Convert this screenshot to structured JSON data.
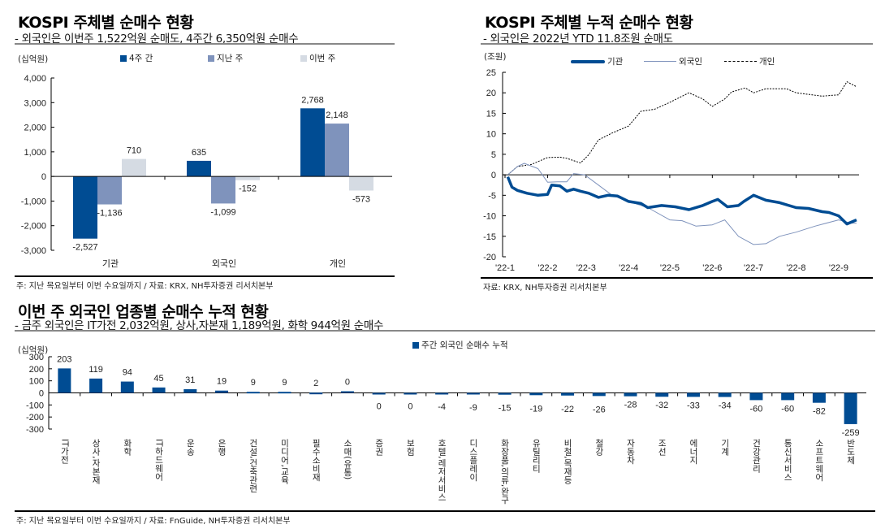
{
  "chart_data": [
    {
      "type": "bar",
      "title": "KOSPI 주체별 순매수 현황",
      "subtitle": "- 외국인은 이번주 1,522억원 순매도, 4주간 6,350억원 순매수",
      "ylabel": "(십억원)",
      "ylim": [
        -3000,
        4000
      ],
      "yticks": [
        "4,000",
        "3,000",
        "2,000",
        "1,000",
        "0",
        "-1,000",
        "-2,000",
        "-3,000"
      ],
      "ytick_values": [
        4000,
        3000,
        2000,
        1000,
        0,
        -1000,
        -2000,
        -3000
      ],
      "categories": [
        "기관",
        "외국인",
        "개인"
      ],
      "series": [
        {
          "name": "4주 간",
          "color": "#004C93",
          "values": [
            -2527,
            635,
            2768
          ],
          "labels": [
            "-2,527",
            "635",
            "2,768"
          ]
        },
        {
          "name": "지난 주",
          "color": "#7F93BC",
          "values": [
            -1136,
            -1099,
            2148
          ],
          "labels": [
            "-1,136",
            "-1,099",
            "2,148"
          ]
        },
        {
          "name": "이번 주",
          "color": "#D5DBE3",
          "values": [
            710,
            -152,
            -573
          ],
          "labels": [
            "710",
            "-152",
            "-573"
          ]
        }
      ],
      "legend": "top",
      "grid": false,
      "source": "주: 지난 목요일부터 이번 수요일까지 / 자료: KRX, NH투자증권 리서치본부"
    },
    {
      "type": "line",
      "title": "KOSPI 주체별 누적 순매수 현황",
      "subtitle": "- 외국인은 2022년 YTD 11.8조원 순매도",
      "ylabel": "(조원)",
      "ylim": [
        -20,
        25
      ],
      "yticks": [
        "25",
        "20",
        "15",
        "10",
        "5",
        "0",
        "-5",
        "-10",
        "-15",
        "-20"
      ],
      "ytick_values": [
        25,
        20,
        15,
        10,
        5,
        0,
        -5,
        -10,
        -15,
        -20
      ],
      "xticks": [
        "'22-1",
        "'22-2",
        "'22-3",
        "'22-4",
        "'22-5",
        "'22-6",
        "'22-7",
        "'22-8",
        "'22-9"
      ],
      "xtick_dates": [
        "2022-01-01",
        "2022-02-01",
        "2022-03-01",
        "2022-04-01",
        "2022-05-01",
        "2022-06-01",
        "2022-07-01",
        "2022-08-01",
        "2022-09-01"
      ],
      "legend": "top",
      "grid": false,
      "series": [
        {
          "name": "기관",
          "color": "#004C93",
          "style": "thick",
          "x": [
            "2022-01-03",
            "2022-01-06",
            "2022-01-10",
            "2022-01-17",
            "2022-01-25",
            "2022-02-01",
            "2022-02-04",
            "2022-02-10",
            "2022-02-15",
            "2022-02-20",
            "2022-02-25",
            "2022-03-03",
            "2022-03-10",
            "2022-03-17",
            "2022-03-24",
            "2022-04-01",
            "2022-04-10",
            "2022-04-15",
            "2022-04-25",
            "2022-05-05",
            "2022-05-15",
            "2022-05-25",
            "2022-06-01",
            "2022-06-05",
            "2022-06-12",
            "2022-06-20",
            "2022-06-24",
            "2022-07-01",
            "2022-07-10",
            "2022-07-20",
            "2022-08-01",
            "2022-08-10",
            "2022-08-20",
            "2022-08-25",
            "2022-09-01",
            "2022-09-07",
            "2022-09-14"
          ],
          "y": [
            -0.5,
            -3,
            -3.8,
            -4.5,
            -5,
            -4.8,
            -2.5,
            -2.7,
            -4,
            -3.5,
            -4,
            -4.5,
            -5.5,
            -5,
            -5.2,
            -6.5,
            -7,
            -8,
            -7.5,
            -7.8,
            -8.5,
            -7.5,
            -6.5,
            -6,
            -7.8,
            -7.5,
            -6.5,
            -5,
            -6.2,
            -6.8,
            -8,
            -8.2,
            -9,
            -9.2,
            -10,
            -12,
            -11
          ]
        },
        {
          "name": "외국인",
          "color": "#7F93BC",
          "style": "thin",
          "x": [
            "2022-01-03",
            "2022-01-10",
            "2022-01-15",
            "2022-01-25",
            "2022-02-01",
            "2022-02-08",
            "2022-02-15",
            "2022-02-20",
            "2022-02-28",
            "2022-03-10",
            "2022-03-20",
            "2022-04-01",
            "2022-04-15",
            "2022-05-01",
            "2022-05-10",
            "2022-05-20",
            "2022-06-01",
            "2022-06-10",
            "2022-06-20",
            "2022-07-01",
            "2022-07-10",
            "2022-07-20",
            "2022-08-01",
            "2022-08-15",
            "2022-09-01",
            "2022-09-10",
            "2022-09-14"
          ],
          "y": [
            0,
            2,
            2.8,
            1.5,
            -1.8,
            -1.7,
            -1.7,
            0.3,
            0,
            -2.5,
            -5,
            -6.5,
            -8,
            -11,
            -11.2,
            -12.5,
            -12.2,
            -11,
            -15,
            -17,
            -16.8,
            -15,
            -14,
            -12.5,
            -11,
            -11.8,
            -11.8
          ]
        },
        {
          "name": "개인",
          "color": "#000000",
          "style": "dashed",
          "x": [
            "2022-01-03",
            "2022-01-10",
            "2022-01-20",
            "2022-02-01",
            "2022-02-10",
            "2022-02-15",
            "2022-02-25",
            "2022-03-03",
            "2022-03-10",
            "2022-03-20",
            "2022-04-01",
            "2022-04-10",
            "2022-04-20",
            "2022-04-30",
            "2022-05-15",
            "2022-05-25",
            "2022-06-01",
            "2022-06-10",
            "2022-06-15",
            "2022-06-25",
            "2022-07-01",
            "2022-07-10",
            "2022-07-25",
            "2022-08-01",
            "2022-08-20",
            "2022-09-01",
            "2022-09-07",
            "2022-09-14"
          ],
          "y": [
            0,
            2,
            2.5,
            4.2,
            4.3,
            4,
            2.9,
            4.9,
            8.5,
            10.2,
            11.9,
            15.5,
            16,
            17.5,
            20,
            18.5,
            16.7,
            18.5,
            20.2,
            21.2,
            20,
            21,
            21,
            20,
            19.2,
            19.5,
            22.7,
            21.5
          ]
        }
      ],
      "source": "자료: KRX, NH투자증권 리서치본부"
    },
    {
      "type": "bar",
      "title": "이번 주 외국인 업종별 순매수 누적 현황",
      "subtitle": "- 금주 외국인은 IT가전 2,032억원, 상사,자본재 1,189억원, 화학 944억원 순매수",
      "ylabel": "(십억원)",
      "ylim": [
        -300,
        300
      ],
      "yticks": [
        "300",
        "200",
        "100",
        "0",
        "-100",
        "-200",
        "-300"
      ],
      "ytick_values": [
        300,
        200,
        100,
        0,
        -100,
        -200,
        -300
      ],
      "legend": "top-right",
      "grid": false,
      "categories": [
        "IT가전",
        "상사,자본재",
        "화학",
        "IT하드웨어",
        "운송",
        "은행",
        "건설,건축관련",
        "미디어,교육",
        "필수소비재",
        "소매(유통)",
        "증권",
        "보험",
        "호텔,레저서비스",
        "디스플레이",
        "화장품,의류,완구",
        "유틸리티",
        "비철,목재등",
        "철강",
        "자동차",
        "조선",
        "에너지",
        "기계",
        "건강관리",
        "통신서비스",
        "소프트웨어",
        "반도체"
      ],
      "series": [
        {
          "name": "주간 외국인 순매수 누적",
          "color": "#004C93",
          "values": [
            203,
            119,
            94,
            45,
            31,
            19,
            9,
            9,
            2,
            0,
            0,
            0,
            -4,
            -9,
            -15,
            -19,
            -22,
            -26,
            -28,
            -32,
            -33,
            -34,
            -60,
            -60,
            -82,
            -259
          ]
        }
      ],
      "source": "주: 지난 목요일부터 이번 수요일까지 / 자료: FnGuide, NH투자증권 리서치본부"
    }
  ]
}
